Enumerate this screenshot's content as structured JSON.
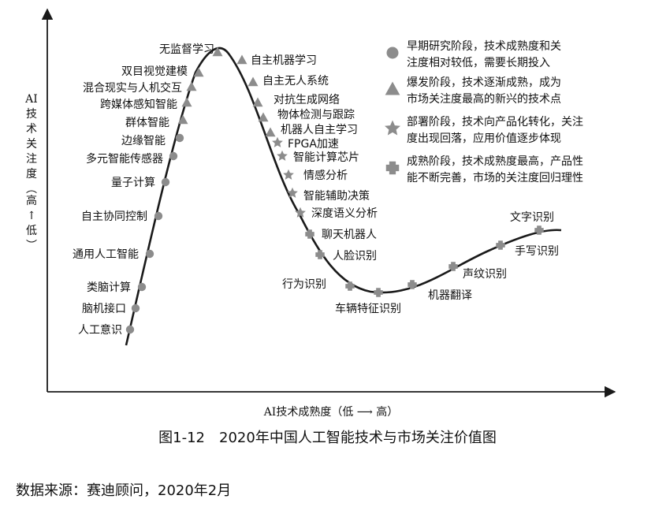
{
  "chart_data": {
    "type": "hype-cycle",
    "xlabel": "AI技术成熟度（低 ⟶ 高）",
    "ylabel": "AI技术关注度（高↑低）",
    "phases": [
      {
        "symbol": "circle",
        "line1": "早期研究阶段，技术成熟度和关",
        "line2": "注度相对较低，需要长期投入"
      },
      {
        "symbol": "triangle",
        "line1": "爆发阶段，技术逐渐成熟，成为",
        "line2": "市场关注度最高的新兴的技术点"
      },
      {
        "symbol": "star",
        "line1": "部署阶段，技术向产品化转化，关注",
        "line2": "度出现回落，应用价值逐步体现"
      },
      {
        "symbol": "plus",
        "line1": "成熟阶段，技术成熟度最高，产品性",
        "line2": "能不断完善，市场的关注度回归理性"
      }
    ],
    "technologies": [
      {
        "name": "人工意识",
        "phase": "circle"
      },
      {
        "name": "脑机接口",
        "phase": "circle"
      },
      {
        "name": "类脑计算",
        "phase": "circle"
      },
      {
        "name": "通用人工智能",
        "phase": "circle"
      },
      {
        "name": "自主协同控制",
        "phase": "circle"
      },
      {
        "name": "量子计算",
        "phase": "circle"
      },
      {
        "name": "多元智能传感器",
        "phase": "circle"
      },
      {
        "name": "边缘智能",
        "phase": "circle"
      },
      {
        "name": "群体智能",
        "phase": "triangle"
      },
      {
        "name": "跨媒体感知智能",
        "phase": "triangle"
      },
      {
        "name": "混合现实与人机交互",
        "phase": "triangle"
      },
      {
        "name": "双目视觉建模",
        "phase": "triangle"
      },
      {
        "name": "无监督学习",
        "phase": "triangle"
      },
      {
        "name": "自主机器学习",
        "phase": "triangle"
      },
      {
        "name": "自主无人系统",
        "phase": "triangle"
      },
      {
        "name": "对抗生成网络",
        "phase": "triangle"
      },
      {
        "name": "物体检测与跟踪",
        "phase": "triangle"
      },
      {
        "name": "机器人自主学习",
        "phase": "triangle"
      },
      {
        "name": "FPGA加速",
        "phase": "star"
      },
      {
        "name": "智能计算芯片",
        "phase": "star"
      },
      {
        "name": "情感分析",
        "phase": "star"
      },
      {
        "name": "智能辅助决策",
        "phase": "star"
      },
      {
        "name": "深度语义分析",
        "phase": "star"
      },
      {
        "name": "聊天机器人",
        "phase": "plus"
      },
      {
        "name": "人脸识别",
        "phase": "plus"
      },
      {
        "name": "行为识别",
        "phase": "plus"
      },
      {
        "name": "车辆特征识别",
        "phase": "plus"
      },
      {
        "name": "机器翻译",
        "phase": "plus"
      },
      {
        "name": "声纹识别",
        "phase": "plus"
      },
      {
        "name": "手写识别",
        "phase": "plus"
      },
      {
        "name": "文字识别",
        "phase": "plus"
      }
    ]
  },
  "caption": "图1-12　2020年中国人工智能技术与市场关注价值图",
  "source": "数据来源：赛迪顾问，2020年2月",
  "colors": {
    "marker": "#8c8c8c",
    "curve": "#1a1a1a",
    "axis": "#1a1a1a"
  }
}
